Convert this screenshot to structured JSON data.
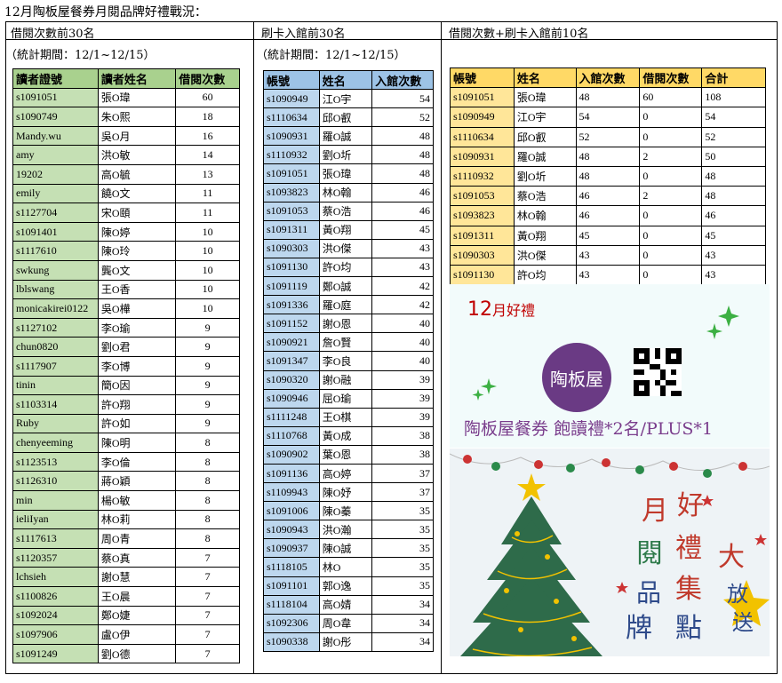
{
  "page_title": "12月陶板屋餐券月閱品牌好禮戰況：",
  "section1": {
    "heading": "借閱次數前30名",
    "period": "（統計期間：12/1~12/15）",
    "columns": [
      "讀者證號",
      "讀者姓名",
      "借閱次數"
    ],
    "rows": [
      [
        "s1091051",
        "張O瑋",
        "60"
      ],
      [
        "s1090749",
        "朱O熙",
        "18"
      ],
      [
        "Mandy.wu",
        "吳O月",
        "16"
      ],
      [
        "amy",
        "洪O敏",
        "14"
      ],
      [
        "19202",
        "高O毓",
        "13"
      ],
      [
        "emily",
        "饒O文",
        "11"
      ],
      [
        "s1127704",
        "宋O頤",
        "11"
      ],
      [
        "s1091401",
        "陳O婷",
        "10"
      ],
      [
        "s1117610",
        "陳O玲",
        "10"
      ],
      [
        "swkung",
        "龔O文",
        "10"
      ],
      [
        "lblswang",
        "王O香",
        "10"
      ],
      [
        "monicakirei0122",
        "吳O樺",
        "10"
      ],
      [
        "s1127102",
        "李O瑜",
        "9"
      ],
      [
        "chun0820",
        "劉O君",
        "9"
      ],
      [
        "s1117907",
        "李O博",
        "9"
      ],
      [
        "tinin",
        "簡O因",
        "9"
      ],
      [
        "s1103314",
        "許O翔",
        "9"
      ],
      [
        "Ruby",
        "許O如",
        "9"
      ],
      [
        "chenyeeming",
        "陳O明",
        "8"
      ],
      [
        "s1123513",
        "李O倫",
        "8"
      ],
      [
        "s1126310",
        "蔣O穎",
        "8"
      ],
      [
        "min",
        "楊O敏",
        "8"
      ],
      [
        "ieliIyan",
        "林O莉",
        "8"
      ],
      [
        "s1117613",
        "周O青",
        "8"
      ],
      [
        "s1120357",
        "蔡O真",
        "7"
      ],
      [
        "lchsieh",
        "謝O慧",
        "7"
      ],
      [
        "s1100826",
        "王O晨",
        "7"
      ],
      [
        "s1092024",
        "鄭O婕",
        "7"
      ],
      [
        "s1097906",
        "盧O伊",
        "7"
      ],
      [
        "s1091249",
        "劉O德",
        "7"
      ]
    ]
  },
  "section2": {
    "heading": "刷卡入館前30名",
    "period": "（統計期間：12/1~12/15）",
    "columns": [
      "帳號",
      "姓名",
      "入館次數"
    ],
    "rows": [
      [
        "s1090949",
        "江O宇",
        "54"
      ],
      [
        "s1110634",
        "邱O叡",
        "52"
      ],
      [
        "s1090931",
        "羅O誠",
        "48"
      ],
      [
        "s1110932",
        "劉O圻",
        "48"
      ],
      [
        "s1091051",
        "張O瑋",
        "48"
      ],
      [
        "s1093823",
        "林O翰",
        "46"
      ],
      [
        "s1091053",
        "蔡O浩",
        "46"
      ],
      [
        "s1091311",
        "黃O翔",
        "45"
      ],
      [
        "s1090303",
        "洪O傑",
        "43"
      ],
      [
        "s1091130",
        "許O均",
        "43"
      ],
      [
        "s1091119",
        "鄭O誠",
        "42"
      ],
      [
        "s1091336",
        "羅O庭",
        "42"
      ],
      [
        "s1091152",
        "謝O恩",
        "40"
      ],
      [
        "s1090921",
        "詹O賢",
        "40"
      ],
      [
        "s1091347",
        "李O良",
        "40"
      ],
      [
        "s1090320",
        "謝O融",
        "39"
      ],
      [
        "s1090946",
        "屈O瑜",
        "39"
      ],
      [
        "s1111248",
        "王O棋",
        "39"
      ],
      [
        "s1110768",
        "黃O成",
        "38"
      ],
      [
        "s1090902",
        "葉O恩",
        "38"
      ],
      [
        "s1091136",
        "高O婷",
        "37"
      ],
      [
        "s1109943",
        "陳O妤",
        "37"
      ],
      [
        "s1091006",
        "陳O蓁",
        "35"
      ],
      [
        "s1090943",
        "洪O瀚",
        "35"
      ],
      [
        "s1090937",
        "陳O誠",
        "35"
      ],
      [
        "s1118105",
        "林O",
        "35"
      ],
      [
        "s1091101",
        "郭O逸",
        "35"
      ],
      [
        "s1118104",
        "高O婧",
        "34"
      ],
      [
        "s1092306",
        "周O韋",
        "34"
      ],
      [
        "s1090338",
        "謝O彤",
        "34"
      ]
    ]
  },
  "section3": {
    "heading": "借閱次數+刷卡入館前10名",
    "columns": [
      "帳號",
      "姓名",
      "入館次數",
      "借閱次數",
      "合計"
    ],
    "rows": [
      [
        "s1091051",
        "張O瑋",
        "48",
        "60",
        "108"
      ],
      [
        "s1090949",
        "江O宇",
        "54",
        "0",
        "54"
      ],
      [
        "s1110634",
        "邱O叡",
        "52",
        "0",
        "52"
      ],
      [
        "s1090931",
        "羅O誠",
        "48",
        "2",
        "50"
      ],
      [
        "s1110932",
        "劉O圻",
        "48",
        "0",
        "48"
      ],
      [
        "s1091053",
        "蔡O浩",
        "46",
        "2",
        "48"
      ],
      [
        "s1093823",
        "林O翰",
        "46",
        "0",
        "46"
      ],
      [
        "s1091311",
        "黃O翔",
        "45",
        "0",
        "45"
      ],
      [
        "s1090303",
        "洪O傑",
        "43",
        "0",
        "43"
      ],
      [
        "s1091130",
        "許O均",
        "43",
        "0",
        "43"
      ]
    ]
  },
  "banner": {
    "month_num": "12",
    "month_text": "月好禮",
    "logo_text": "陶板屋",
    "caption": "陶板屋餐券  飽讀禮*2名/PLUS*1"
  },
  "poster": {
    "chars": [
      "月",
      "好",
      "閱",
      "禮",
      "大",
      "品",
      "集",
      "放",
      "牌",
      "點",
      "送"
    ]
  },
  "colors": {
    "green_header": "#a9d18e",
    "green_cell": "#c5e0b4",
    "blue_header": "#9dc3e6",
    "blue_cell": "#bdd7ee",
    "yellow_header": "#ffd966",
    "yellow_cell": "#ffe699"
  }
}
